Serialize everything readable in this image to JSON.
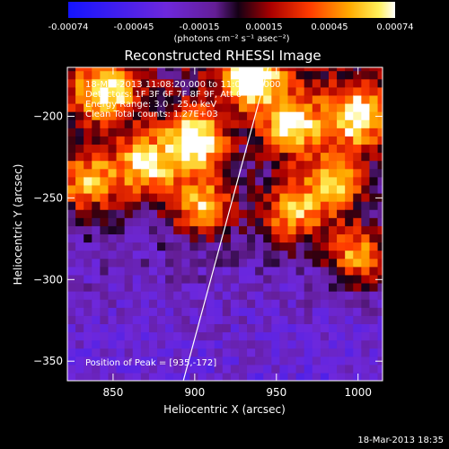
{
  "chart_data": {
    "type": "heatmap",
    "title": "Reconstructed RHESSI Image",
    "xlabel": "Heliocentric X (arcsec)",
    "ylabel": "Heliocentric Y (arcsec)",
    "xlim": [
      822,
      1015
    ],
    "ylim": [
      -362,
      -170
    ],
    "x_ticks": [
      850,
      900,
      950,
      1000
    ],
    "y_ticks": [
      -200,
      -250,
      -300,
      -350
    ],
    "colorbar": {
      "ticks": [
        "-0.00074",
        "-0.00045",
        "-0.00015",
        "0.00015",
        "0.00045",
        "0.00074"
      ],
      "unit": "(photons cm⁻² s⁻¹ asec⁻²)",
      "range": [
        -0.00074,
        0.00074
      ]
    },
    "annotations": [
      "18-Mar-2013 11:08:20.000 to 11:09:16.000",
      "Detectors: 1F 3F 6F 7F 8F 9F, Att 0",
      "Energy Range: 3.0 - 25.0 keV",
      "Clean     Total counts: 1.27E+03",
      "Position of Peak = [935,-172]"
    ],
    "limb_line": [
      [
        893,
        -362
      ],
      [
        945,
        -170
      ]
    ],
    "bright_regions": [
      {
        "x": 845,
        "y": -185,
        "value": 0.0006
      },
      {
        "x": 870,
        "y": -230,
        "value": 0.00055
      },
      {
        "x": 900,
        "y": -215,
        "value": 0.0007
      },
      {
        "x": 935,
        "y": -175,
        "value": 0.00074
      },
      {
        "x": 960,
        "y": -205,
        "value": 0.0006
      },
      {
        "x": 985,
        "y": -240,
        "value": 0.0005
      },
      {
        "x": 905,
        "y": -255,
        "value": 0.0005
      },
      {
        "x": 960,
        "y": -260,
        "value": 0.00045
      },
      {
        "x": 1000,
        "y": -200,
        "value": 0.0006
      },
      {
        "x": 1000,
        "y": -285,
        "value": 0.0005
      },
      {
        "x": 835,
        "y": -240,
        "value": 0.00045
      }
    ]
  },
  "footer": {
    "stamp": "18-Mar-2013 18:35"
  }
}
